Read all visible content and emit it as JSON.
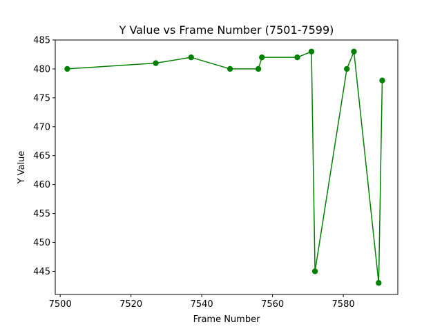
{
  "chart_data": {
    "type": "line",
    "title": "Y Value vs Frame Number (7501-7599)",
    "xlabel": "Frame Number",
    "ylabel": "Y Value",
    "xlim": [
      7498.6,
      7595.4
    ],
    "ylim": [
      441.0,
      485.0
    ],
    "xticks": [
      7500,
      7520,
      7540,
      7560,
      7580
    ],
    "yticks": [
      445,
      450,
      455,
      460,
      465,
      470,
      475,
      480,
      485
    ],
    "grid": false,
    "legend": "none",
    "series": [
      {
        "color": "#008000",
        "marker": "circle",
        "x": [
          7502,
          7527,
          7537,
          7548,
          7556,
          7557,
          7567,
          7571,
          7572,
          7581,
          7583,
          7590,
          7591
        ],
        "y": [
          480,
          481,
          482,
          480,
          480,
          482,
          482,
          483,
          445,
          480,
          483,
          443,
          478
        ]
      }
    ]
  }
}
